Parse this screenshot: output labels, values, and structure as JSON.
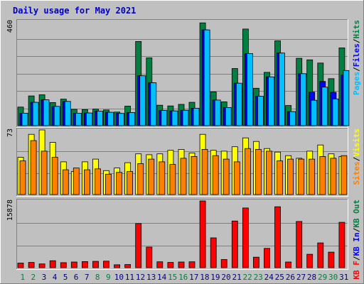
{
  "chart_data": {
    "type": "bar",
    "title": "Daily usage for May 2021",
    "categories": [
      "1",
      "2",
      "3",
      "4",
      "5",
      "6",
      "7",
      "8",
      "9",
      "10",
      "11",
      "12",
      "13",
      "14",
      "15",
      "16",
      "17",
      "18",
      "19",
      "20",
      "21",
      "22",
      "23",
      "24",
      "25",
      "26",
      "27",
      "28",
      "29",
      "30",
      "31"
    ],
    "weekend_days": [
      "1",
      "2",
      "8",
      "9",
      "15",
      "16",
      "22",
      "23",
      "29",
      "30"
    ],
    "panels": [
      {
        "name": "hits-files-pages",
        "ymax_label": "460",
        "ymax": 460,
        "legend": [
          {
            "text": "Pages",
            "color": "#00C0FF"
          },
          {
            "text": "/",
            "color": "#000000"
          },
          {
            "text": "Files",
            "color": "#0000FF"
          },
          {
            "text": "/",
            "color": "#000000"
          },
          {
            "text": "Hits",
            "color": "#008040"
          }
        ],
        "series": [
          {
            "name": "Hits",
            "color": "#008040",
            "values": [
              82,
              131,
              136,
              102,
              117,
              72,
              71,
              73,
              69,
              60,
              86,
              371,
              299,
              90,
              87,
              94,
              103,
              453,
              149,
              105,
              252,
              426,
              165,
              235,
              374,
              89,
              297,
              290,
              276,
              207,
              343
            ]
          },
          {
            "name": "Files",
            "color": "#0000FF",
            "values": [
              55,
              103,
              114,
              85,
              107,
              55,
              56,
              64,
              59,
              54,
              58,
              220,
              189,
              67,
              65,
              68,
              77,
              422,
              113,
              80,
              187,
              318,
              130,
              215,
              320,
              62,
              229,
              148,
              195,
              147,
              223
            ]
          },
          {
            "name": "Pages",
            "color": "#00C0FF",
            "values": [
              55,
              103,
              114,
              85,
              107,
              55,
              56,
              64,
              59,
              54,
              58,
              220,
              189,
              67,
              65,
              68,
              77,
              422,
              113,
              80,
              187,
              318,
              130,
              215,
              320,
              62,
              229,
              112,
              170,
              118,
              243
            ]
          }
        ]
      },
      {
        "name": "visits-sites",
        "ymax_label": "73",
        "ymax": 73,
        "legend": [
          {
            "text": "Sites",
            "color": "#FF8000"
          },
          {
            "text": "/",
            "color": "#000000"
          },
          {
            "text": "Visits",
            "color": "#FFFF00"
          }
        ],
        "series": [
          {
            "name": "Visits",
            "color": "#FFFF00",
            "values": [
              42,
              68,
              73,
              59,
              37,
              26,
              37,
              40,
              27,
              30,
              36,
              46,
              45,
              46,
              50,
              51,
              47,
              68,
              50,
              49,
              54,
              64,
              60,
              52,
              48,
              44,
              41,
              49,
              56,
              46,
              43
            ]
          },
          {
            "name": "Sites",
            "color": "#FF8000",
            "values": [
              38,
              61,
              49,
              42,
              28,
              30,
              28,
              29,
              23,
              25,
              26,
              35,
              40,
              37,
              34,
              41,
              43,
              51,
              44,
              40,
              37,
              52,
              51,
              49,
              38,
              40,
              40,
              40,
              43,
              41,
              44
            ]
          }
        ]
      },
      {
        "name": "kbytes",
        "ymax_label": "15878",
        "ymax": 15878,
        "legend": [
          {
            "text": "KB F",
            "color": "#FF0000"
          },
          {
            "text": "/",
            "color": "#000000"
          },
          {
            "text": "KB In",
            "color": "#0000FF"
          },
          {
            "text": "/",
            "color": "#000000"
          },
          {
            "text": "KB Out",
            "color": "#008040"
          }
        ],
        "series": [
          {
            "name": "KB F",
            "color": "#FF0000",
            "values": [
              1100,
              1250,
              900,
              1650,
              1200,
              1350,
              1450,
              1500,
              1550,
              700,
              750,
              10500,
              4900,
              1400,
              1250,
              1350,
              1400,
              15878,
              7100,
              1950,
              11100,
              14200,
              2500,
              4600,
              14500,
              1350,
              11000,
              3200,
              5900,
              3700,
              10800
            ]
          }
        ]
      }
    ]
  }
}
